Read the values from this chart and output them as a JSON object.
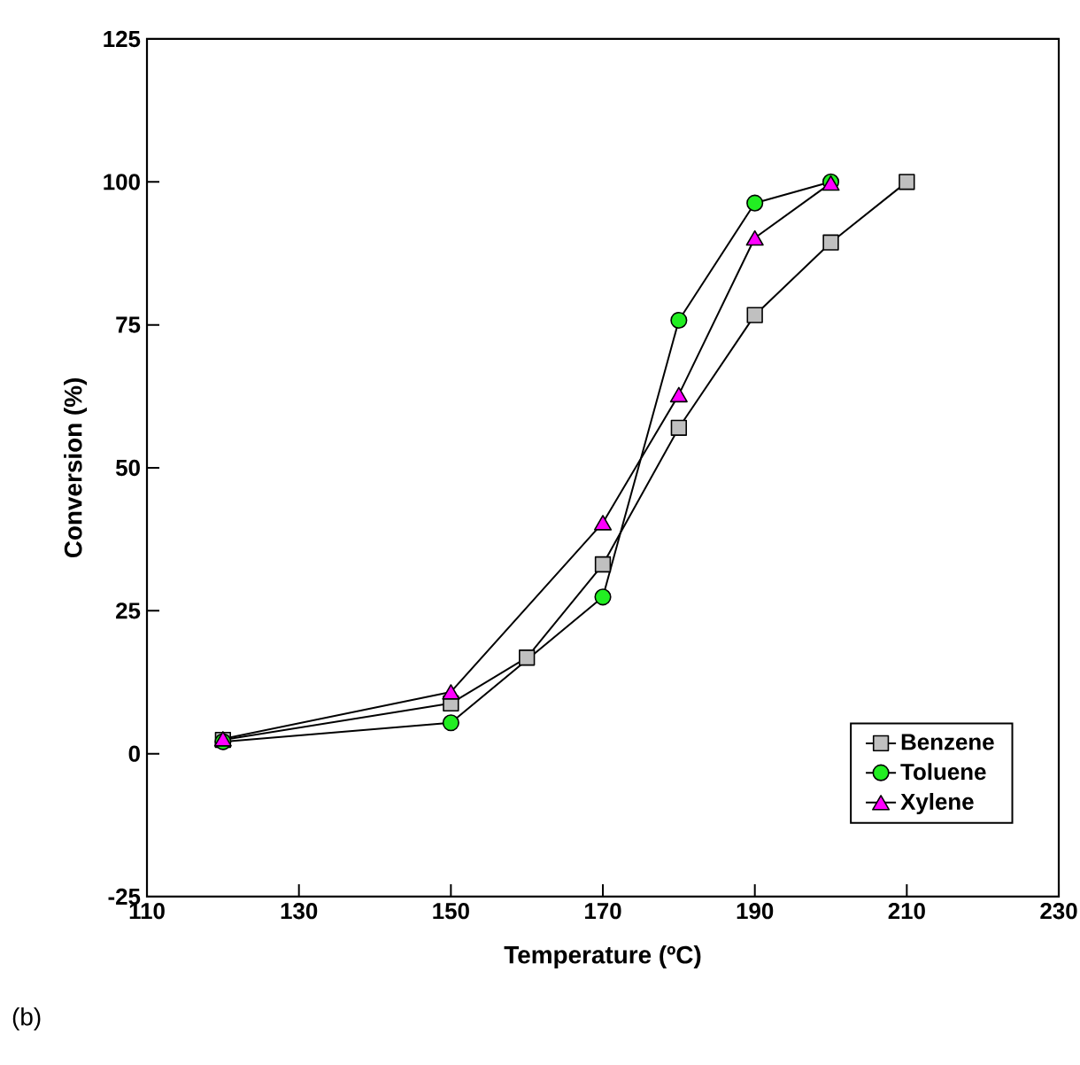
{
  "chart_data": {
    "type": "line",
    "xlabel": "Temperature (ºC)",
    "ylabel": "Conversion (%)",
    "xlim": [
      110,
      230
    ],
    "xticks": [
      110,
      130,
      150,
      170,
      190,
      210,
      230
    ],
    "ylim": [
      -25,
      125
    ],
    "yticks": [
      -25,
      0,
      25,
      50,
      75,
      100,
      125
    ],
    "legend": "bottom right",
    "grid": false,
    "line_style": "solid",
    "annotations": [
      "(b)"
    ],
    "series": [
      {
        "name": "Benzene",
        "color": "#c0c0c0",
        "marker": "square",
        "x": [
          120,
          150,
          160,
          170,
          180,
          190,
          200,
          210
        ],
        "values": [
          2.4,
          8.8,
          16.8,
          33.1,
          57.0,
          76.7,
          89.4,
          100
        ]
      },
      {
        "name": "Toluene",
        "color": "#22ee22",
        "marker": "circle",
        "x": [
          120,
          150,
          170,
          180,
          190,
          200
        ],
        "values": [
          2.1,
          5.4,
          27.4,
          75.8,
          96.3,
          100
        ]
      },
      {
        "name": "Xylene",
        "color": "#ff00ff",
        "marker": "triangle",
        "x": [
          120,
          150,
          170,
          180,
          190,
          200
        ],
        "values": [
          2.6,
          10.8,
          40.4,
          62.8,
          90.2,
          99.8
        ]
      }
    ]
  }
}
